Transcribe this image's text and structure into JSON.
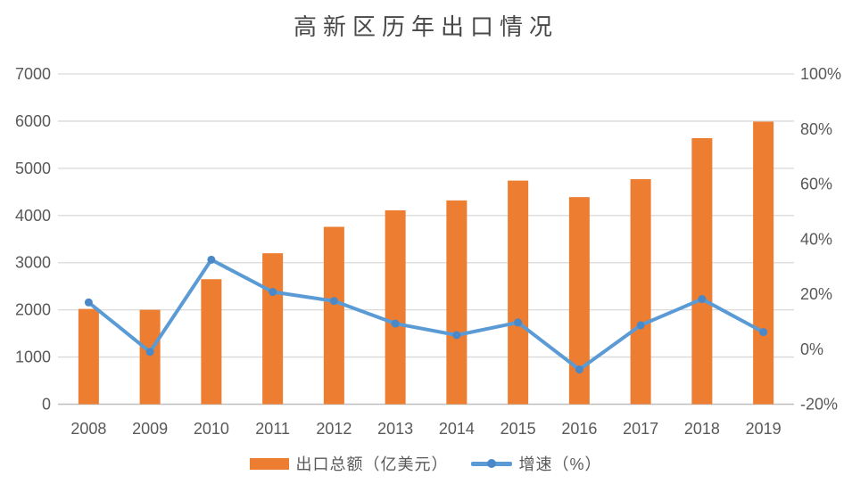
{
  "chart_data": {
    "type": "combo-bar-line",
    "title": "高新区历年出口情况",
    "categories": [
      "2008",
      "2009",
      "2010",
      "2011",
      "2012",
      "2013",
      "2014",
      "2015",
      "2016",
      "2017",
      "2018",
      "2019"
    ],
    "series": [
      {
        "name": "出口总额（亿美元）",
        "type": "bar",
        "axis": "left",
        "color": "#ED7D31",
        "values": [
          2020,
          2000,
          2650,
          3200,
          3760,
          4110,
          4320,
          4740,
          4390,
          4770,
          5640,
          5990
        ]
      },
      {
        "name": "增速（%）",
        "type": "line",
        "axis": "right",
        "color": "#5B9BD5",
        "marker_color": "#4A88C7",
        "values": [
          17.0,
          -1.0,
          32.5,
          20.8,
          17.5,
          9.3,
          5.1,
          9.7,
          -7.4,
          8.7,
          18.2,
          6.2
        ]
      }
    ],
    "left_axis": {
      "min": 0,
      "max": 7000,
      "step": 1000,
      "tick_labels": [
        "0",
        "1000",
        "2000",
        "3000",
        "4000",
        "5000",
        "6000",
        "7000"
      ]
    },
    "right_axis": {
      "min": -20,
      "max": 100,
      "step": 20,
      "tick_labels": [
        "-20%",
        "0%",
        "20%",
        "40%",
        "60%",
        "80%",
        "100%"
      ]
    },
    "grid": true,
    "legend_position": "bottom",
    "colors": {
      "gridline": "#D9D9D9",
      "axis_line": "#BFBFBF",
      "tick_text": "#595959",
      "title_text": "#484848",
      "background": "#FFFFFF"
    }
  }
}
